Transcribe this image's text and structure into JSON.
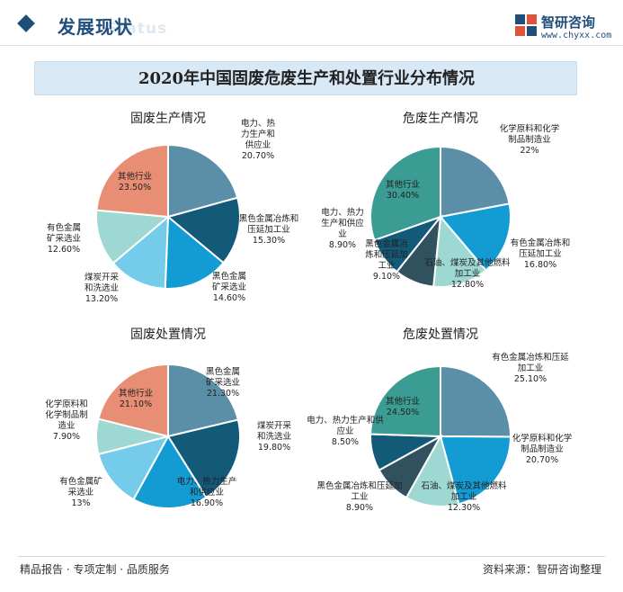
{
  "header": {
    "title": "发展现状",
    "ghost_text": "Status",
    "logo_name": "智研咨询",
    "logo_url": "www.chyxx.com"
  },
  "main_title": "2020年中国固废危废生产和处置行业分布情况",
  "colors": {
    "pie": [
      "#5b8fa8",
      "#135a78",
      "#139bd3",
      "#74cbea",
      "#9dd8d2",
      "#e88e74",
      "#3a9c93",
      "#31515f"
    ]
  },
  "chart_data": [
    {
      "type": "pie",
      "title": "固废生产情况",
      "unit": "%",
      "slices": [
        {
          "label": "电力、热力生产和供应业",
          "value": 20.7,
          "display": "20.70%"
        },
        {
          "label": "黑色金属冶炼和压延加工业",
          "value": 15.3,
          "display": "15.30%"
        },
        {
          "label": "黑色金属矿采选业",
          "value": 14.6,
          "display": "14.60%"
        },
        {
          "label": "煤炭开采和洗选业",
          "value": 13.2,
          "display": "13.20%"
        },
        {
          "label": "有色金属矿采选业",
          "value": 12.6,
          "display": "12.60%"
        },
        {
          "label": "其他行业",
          "value": 23.5,
          "display": "23.50%"
        }
      ]
    },
    {
      "type": "pie",
      "title": "危废生产情况",
      "unit": "%",
      "slices": [
        {
          "label": "化学原料和化学制品制造业",
          "value": 22,
          "display": "22%"
        },
        {
          "label": "有色金属冶炼和压延加工业",
          "value": 16.8,
          "display": "16.80%"
        },
        {
          "label": "石油、煤炭及其他燃料加工业",
          "value": 12.8,
          "display": "12.80%"
        },
        {
          "label": "黑色金属冶炼和压延加工业",
          "value": 9.1,
          "display": "9.10%"
        },
        {
          "label": "电力、热力生产和供应业",
          "value": 8.9,
          "display": "8.90%"
        },
        {
          "label": "其他行业",
          "value": 30.4,
          "display": "30.40%"
        }
      ]
    },
    {
      "type": "pie",
      "title": "固废处置情况",
      "unit": "%",
      "slices": [
        {
          "label": "黑色金属矿采选业",
          "value": 21.3,
          "display": "21.30%"
        },
        {
          "label": "煤炭开采和洗选业",
          "value": 19.8,
          "display": "19.80%"
        },
        {
          "label": "电力、热力生产和供应业",
          "value": 16.9,
          "display": "16.90%"
        },
        {
          "label": "有色金属矿采选业",
          "value": 13,
          "display": "13%"
        },
        {
          "label": "化学原料和化学制品制造业",
          "value": 7.9,
          "display": "7.90%"
        },
        {
          "label": "其他行业",
          "value": 21.1,
          "display": "21.10%"
        }
      ]
    },
    {
      "type": "pie",
      "title": "危废处置情况",
      "unit": "%",
      "slices": [
        {
          "label": "有色金属冶炼和压延加工业",
          "value": 25.1,
          "display": "25.10%"
        },
        {
          "label": "化学原料和化学制品制造业",
          "value": 20.7,
          "display": "20.70%"
        },
        {
          "label": "石油、煤炭及其他燃料加工业",
          "value": 12.3,
          "display": "12.30%"
        },
        {
          "label": "黑色金属冶炼和压延加工业",
          "value": 8.9,
          "display": "8.90%"
        },
        {
          "label": "电力、热力生产和供应业",
          "value": 8.5,
          "display": "8.50%"
        },
        {
          "label": "其他行业",
          "value": 24.5,
          "display": "24.50%"
        }
      ]
    }
  ],
  "footer": {
    "left": "精品报告 · 专项定制 · 品质服务",
    "right": "资料来源：智研咨询整理"
  }
}
